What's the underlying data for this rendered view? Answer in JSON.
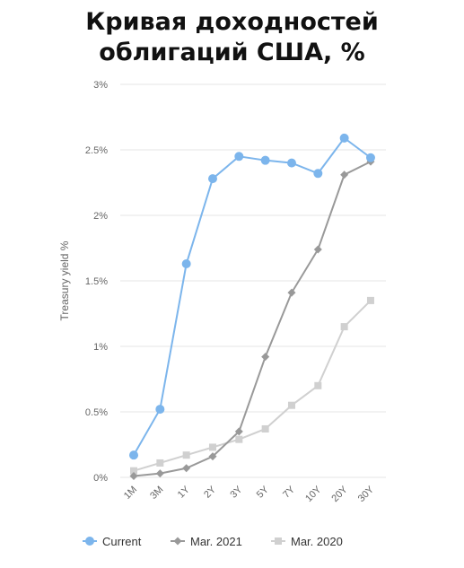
{
  "header": {
    "title_line1": "Кривая доходностей",
    "title_line2": "облигаций США, %"
  },
  "chart_data": {
    "type": "line",
    "title": "Кривая доходностей облигаций США, %",
    "ylabel": "Treasury yield %",
    "xlabel": "",
    "categories": [
      "1M",
      "3M",
      "1Y",
      "2Y",
      "3Y",
      "5Y",
      "7Y",
      "10Y",
      "20Y",
      "30Y"
    ],
    "y_ticks": [
      "0%",
      "0.5%",
      "1%",
      "1.5%",
      "2%",
      "2.5%",
      "3%"
    ],
    "ylim": [
      0,
      3
    ],
    "grid": true,
    "legend_position": "bottom",
    "series": [
      {
        "name": "Current",
        "color": "#7cb5ec",
        "marker": "circle",
        "values": [
          0.17,
          0.52,
          1.63,
          2.28,
          2.45,
          2.42,
          2.4,
          2.32,
          2.59,
          2.44
        ]
      },
      {
        "name": "Mar. 2021",
        "color": "#999999",
        "marker": "diamond",
        "values": [
          0.01,
          0.03,
          0.07,
          0.16,
          0.35,
          0.92,
          1.41,
          1.74,
          2.31,
          2.41
        ]
      },
      {
        "name": "Mar. 2020",
        "color": "#d0d0d0",
        "marker": "square",
        "values": [
          0.05,
          0.11,
          0.17,
          0.23,
          0.29,
          0.37,
          0.55,
          0.7,
          1.15,
          1.35
        ]
      }
    ]
  }
}
